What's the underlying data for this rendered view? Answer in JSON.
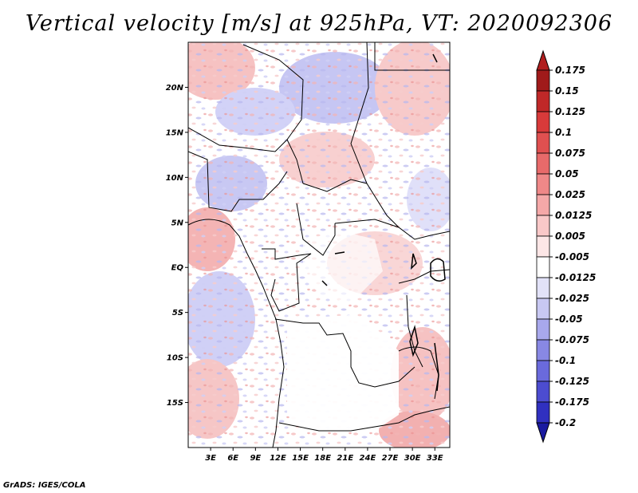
{
  "title": "Vertical velocity [m/s] at 925hPa, VT: 2020092306",
  "footer": "GrADS: IGES/COLA",
  "map": {
    "lat_range": [
      -20,
      25
    ],
    "lon_range": [
      0,
      35
    ],
    "lat_ticks": [
      {
        "value": 20,
        "label": "20N"
      },
      {
        "value": 15,
        "label": "15N"
      },
      {
        "value": 10,
        "label": "10N"
      },
      {
        "value": 5,
        "label": "5N"
      },
      {
        "value": 0,
        "label": "EQ"
      },
      {
        "value": -5,
        "label": "5S"
      },
      {
        "value": -10,
        "label": "10S"
      },
      {
        "value": -15,
        "label": "15S"
      }
    ],
    "lon_ticks": [
      {
        "value": 3,
        "label": "3E"
      },
      {
        "value": 6,
        "label": "6E"
      },
      {
        "value": 9,
        "label": "9E"
      },
      {
        "value": 12,
        "label": "12E"
      },
      {
        "value": 15,
        "label": "15E"
      },
      {
        "value": 18,
        "label": "18E"
      },
      {
        "value": 21,
        "label": "21E"
      },
      {
        "value": 24,
        "label": "24E"
      },
      {
        "value": 27,
        "label": "27E"
      },
      {
        "value": 30,
        "label": "30E"
      },
      {
        "value": 33,
        "label": "33E"
      }
    ]
  },
  "colorbar": {
    "labels": [
      "0.175",
      "0.15",
      "0.125",
      "0.1",
      "0.075",
      "0.05",
      "0.025",
      "0.0125",
      "0.005",
      "-0.005",
      "-0.0125",
      "-0.025",
      "-0.05",
      "-0.075",
      "-0.1",
      "-0.125",
      "-0.175",
      "-0.2"
    ],
    "colors": [
      "#a01a1a",
      "#c02828",
      "#d83a3a",
      "#e05050",
      "#e86a6a",
      "#ef8888",
      "#f5a8a8",
      "#f9c8c8",
      "#fce6e6",
      "#ffffff",
      "#e2e2f8",
      "#c8c8f2",
      "#a8a8ec",
      "#8888e4",
      "#6a6adc",
      "#4c4cd0",
      "#3030c0",
      "#1818a8"
    ],
    "top_color": "#b01e1e",
    "bottom_color": "#1a1aa0"
  }
}
